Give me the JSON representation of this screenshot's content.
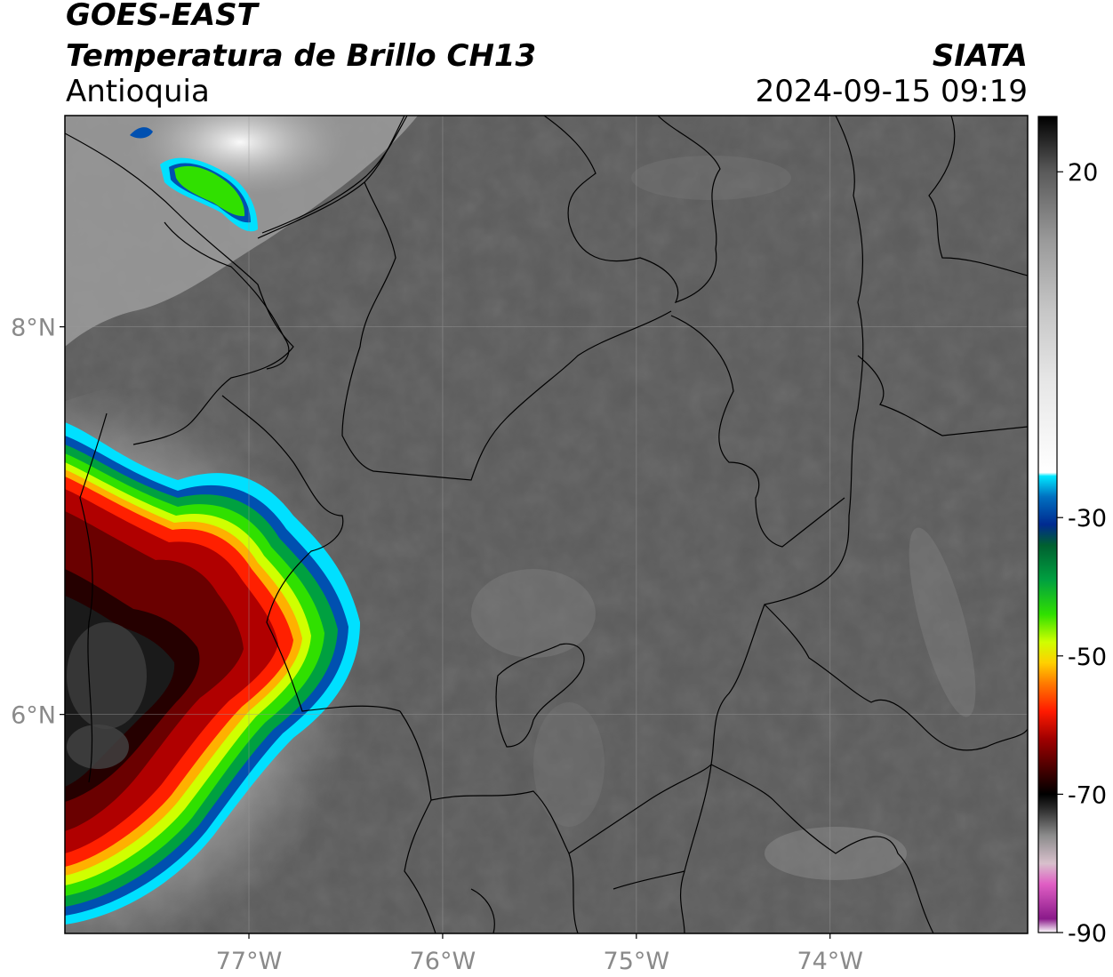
{
  "header": {
    "satellite": "GOES-EAST",
    "product": "Temperatura de Brillo CH13",
    "region": "Antioquia",
    "agency": "SIATA",
    "timestamp": "2024-09-15 09:19"
  },
  "map": {
    "lon_range": [
      -77.95,
      -72.98
    ],
    "lat_range": [
      4.87,
      9.09
    ],
    "lon_ticks": [
      {
        "value": -77,
        "label": "77°W"
      },
      {
        "value": -76,
        "label": "76°W"
      },
      {
        "value": -75,
        "label": "75°W"
      },
      {
        "value": -74,
        "label": "74°W"
      }
    ],
    "lat_ticks": [
      {
        "value": 8,
        "label": "8°N"
      },
      {
        "value": 6,
        "label": "6°N"
      }
    ],
    "colors": {
      "background_gray": "#5c5c5c",
      "border": "#000000",
      "gridline": "#9a9a9a"
    }
  },
  "colorbar": {
    "range": [
      -90,
      28
    ],
    "ticks": [
      {
        "value": 20,
        "label": "20"
      },
      {
        "value": -30,
        "label": "-30"
      },
      {
        "value": -50,
        "label": "-50"
      },
      {
        "value": -70,
        "label": "-70"
      },
      {
        "value": -90,
        "label": "-90"
      }
    ],
    "stops": [
      {
        "value": -90,
        "color": "#ffffff"
      },
      {
        "value": -88,
        "color": "#8a1a8a"
      },
      {
        "value": -83,
        "color": "#e05ec4"
      },
      {
        "value": -80,
        "color": "#d8c0cc"
      },
      {
        "value": -76,
        "color": "#8c8c8c"
      },
      {
        "value": -72,
        "color": "#2a2a2a"
      },
      {
        "value": -70,
        "color": "#000000"
      },
      {
        "value": -67,
        "color": "#3a0000"
      },
      {
        "value": -62,
        "color": "#a00000"
      },
      {
        "value": -58,
        "color": "#ff1a00"
      },
      {
        "value": -54,
        "color": "#ff7a00"
      },
      {
        "value": -51,
        "color": "#ffd000"
      },
      {
        "value": -48,
        "color": "#d0ff00"
      },
      {
        "value": -44,
        "color": "#30e000"
      },
      {
        "value": -39,
        "color": "#00a040"
      },
      {
        "value": -34,
        "color": "#006030"
      },
      {
        "value": -31,
        "color": "#002a90"
      },
      {
        "value": -27,
        "color": "#0070c0"
      },
      {
        "value": -24,
        "color": "#00e8ff"
      },
      {
        "value": -23.5,
        "color": "#ffffff"
      },
      {
        "value": -10,
        "color": "#e6e6e6"
      },
      {
        "value": 0,
        "color": "#c6c6c6"
      },
      {
        "value": 10,
        "color": "#9a9a9a"
      },
      {
        "value": 20,
        "color": "#5a5a5a"
      },
      {
        "value": 28,
        "color": "#000000"
      }
    ]
  }
}
